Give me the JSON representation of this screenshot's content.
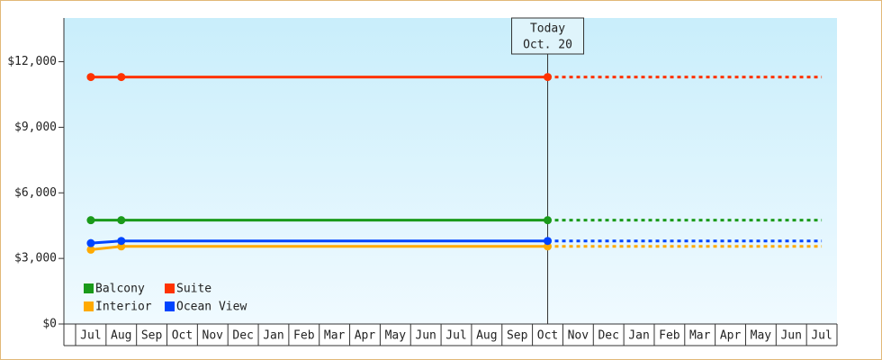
{
  "chart_data": {
    "type": "line",
    "categories": [
      "Jul",
      "Aug",
      "Sep",
      "Oct",
      "Nov",
      "Dec",
      "Jan",
      "Feb",
      "Mar",
      "Apr",
      "May",
      "Jun",
      "Jul",
      "Aug",
      "Sep",
      "Oct",
      "Nov",
      "Dec",
      "Jan",
      "Feb",
      "Mar",
      "Apr",
      "May",
      "Jun",
      "Jul"
    ],
    "series": [
      {
        "name": "Balcony",
        "color": "#1a9a1a",
        "values": [
          4750,
          4750,
          4750,
          4750,
          4750,
          4750,
          4750,
          4750,
          4750,
          4750,
          4750,
          4750,
          4750,
          4750,
          4750,
          4750,
          4750,
          4750,
          4750,
          4750,
          4750,
          4750,
          4750,
          4750,
          4750
        ]
      },
      {
        "name": "Suite",
        "color": "#ff3300",
        "values": [
          11300,
          11300,
          11300,
          11300,
          11300,
          11300,
          11300,
          11300,
          11300,
          11300,
          11300,
          11300,
          11300,
          11300,
          11300,
          11300,
          11300,
          11300,
          11300,
          11300,
          11300,
          11300,
          11300,
          11300,
          11300
        ]
      },
      {
        "name": "Interior",
        "color": "#ffaa00",
        "values": [
          3400,
          3550,
          3550,
          3550,
          3550,
          3550,
          3550,
          3550,
          3550,
          3550,
          3550,
          3550,
          3550,
          3550,
          3550,
          3550,
          3550,
          3550,
          3550,
          3550,
          3550,
          3550,
          3550,
          3550,
          3550
        ]
      },
      {
        "name": "Ocean View",
        "color": "#0044ff",
        "values": [
          3700,
          3800,
          3800,
          3800,
          3800,
          3800,
          3800,
          3800,
          3800,
          3800,
          3800,
          3800,
          3800,
          3800,
          3800,
          3800,
          3800,
          3800,
          3800,
          3800,
          3800,
          3800,
          3800,
          3800,
          3800
        ]
      }
    ],
    "ylim": [
      0,
      14000
    ],
    "yticks": [
      {
        "value": 0,
        "label": "$0"
      },
      {
        "value": 3000,
        "label": "$3,000"
      },
      {
        "value": 6000,
        "label": "$6,000"
      },
      {
        "value": 9000,
        "label": "$9,000"
      },
      {
        "value": 12000,
        "label": "$12,000"
      }
    ],
    "today": {
      "label": [
        "Today",
        "Oct. 20"
      ],
      "category_index": 15
    },
    "legend": "lower left"
  }
}
